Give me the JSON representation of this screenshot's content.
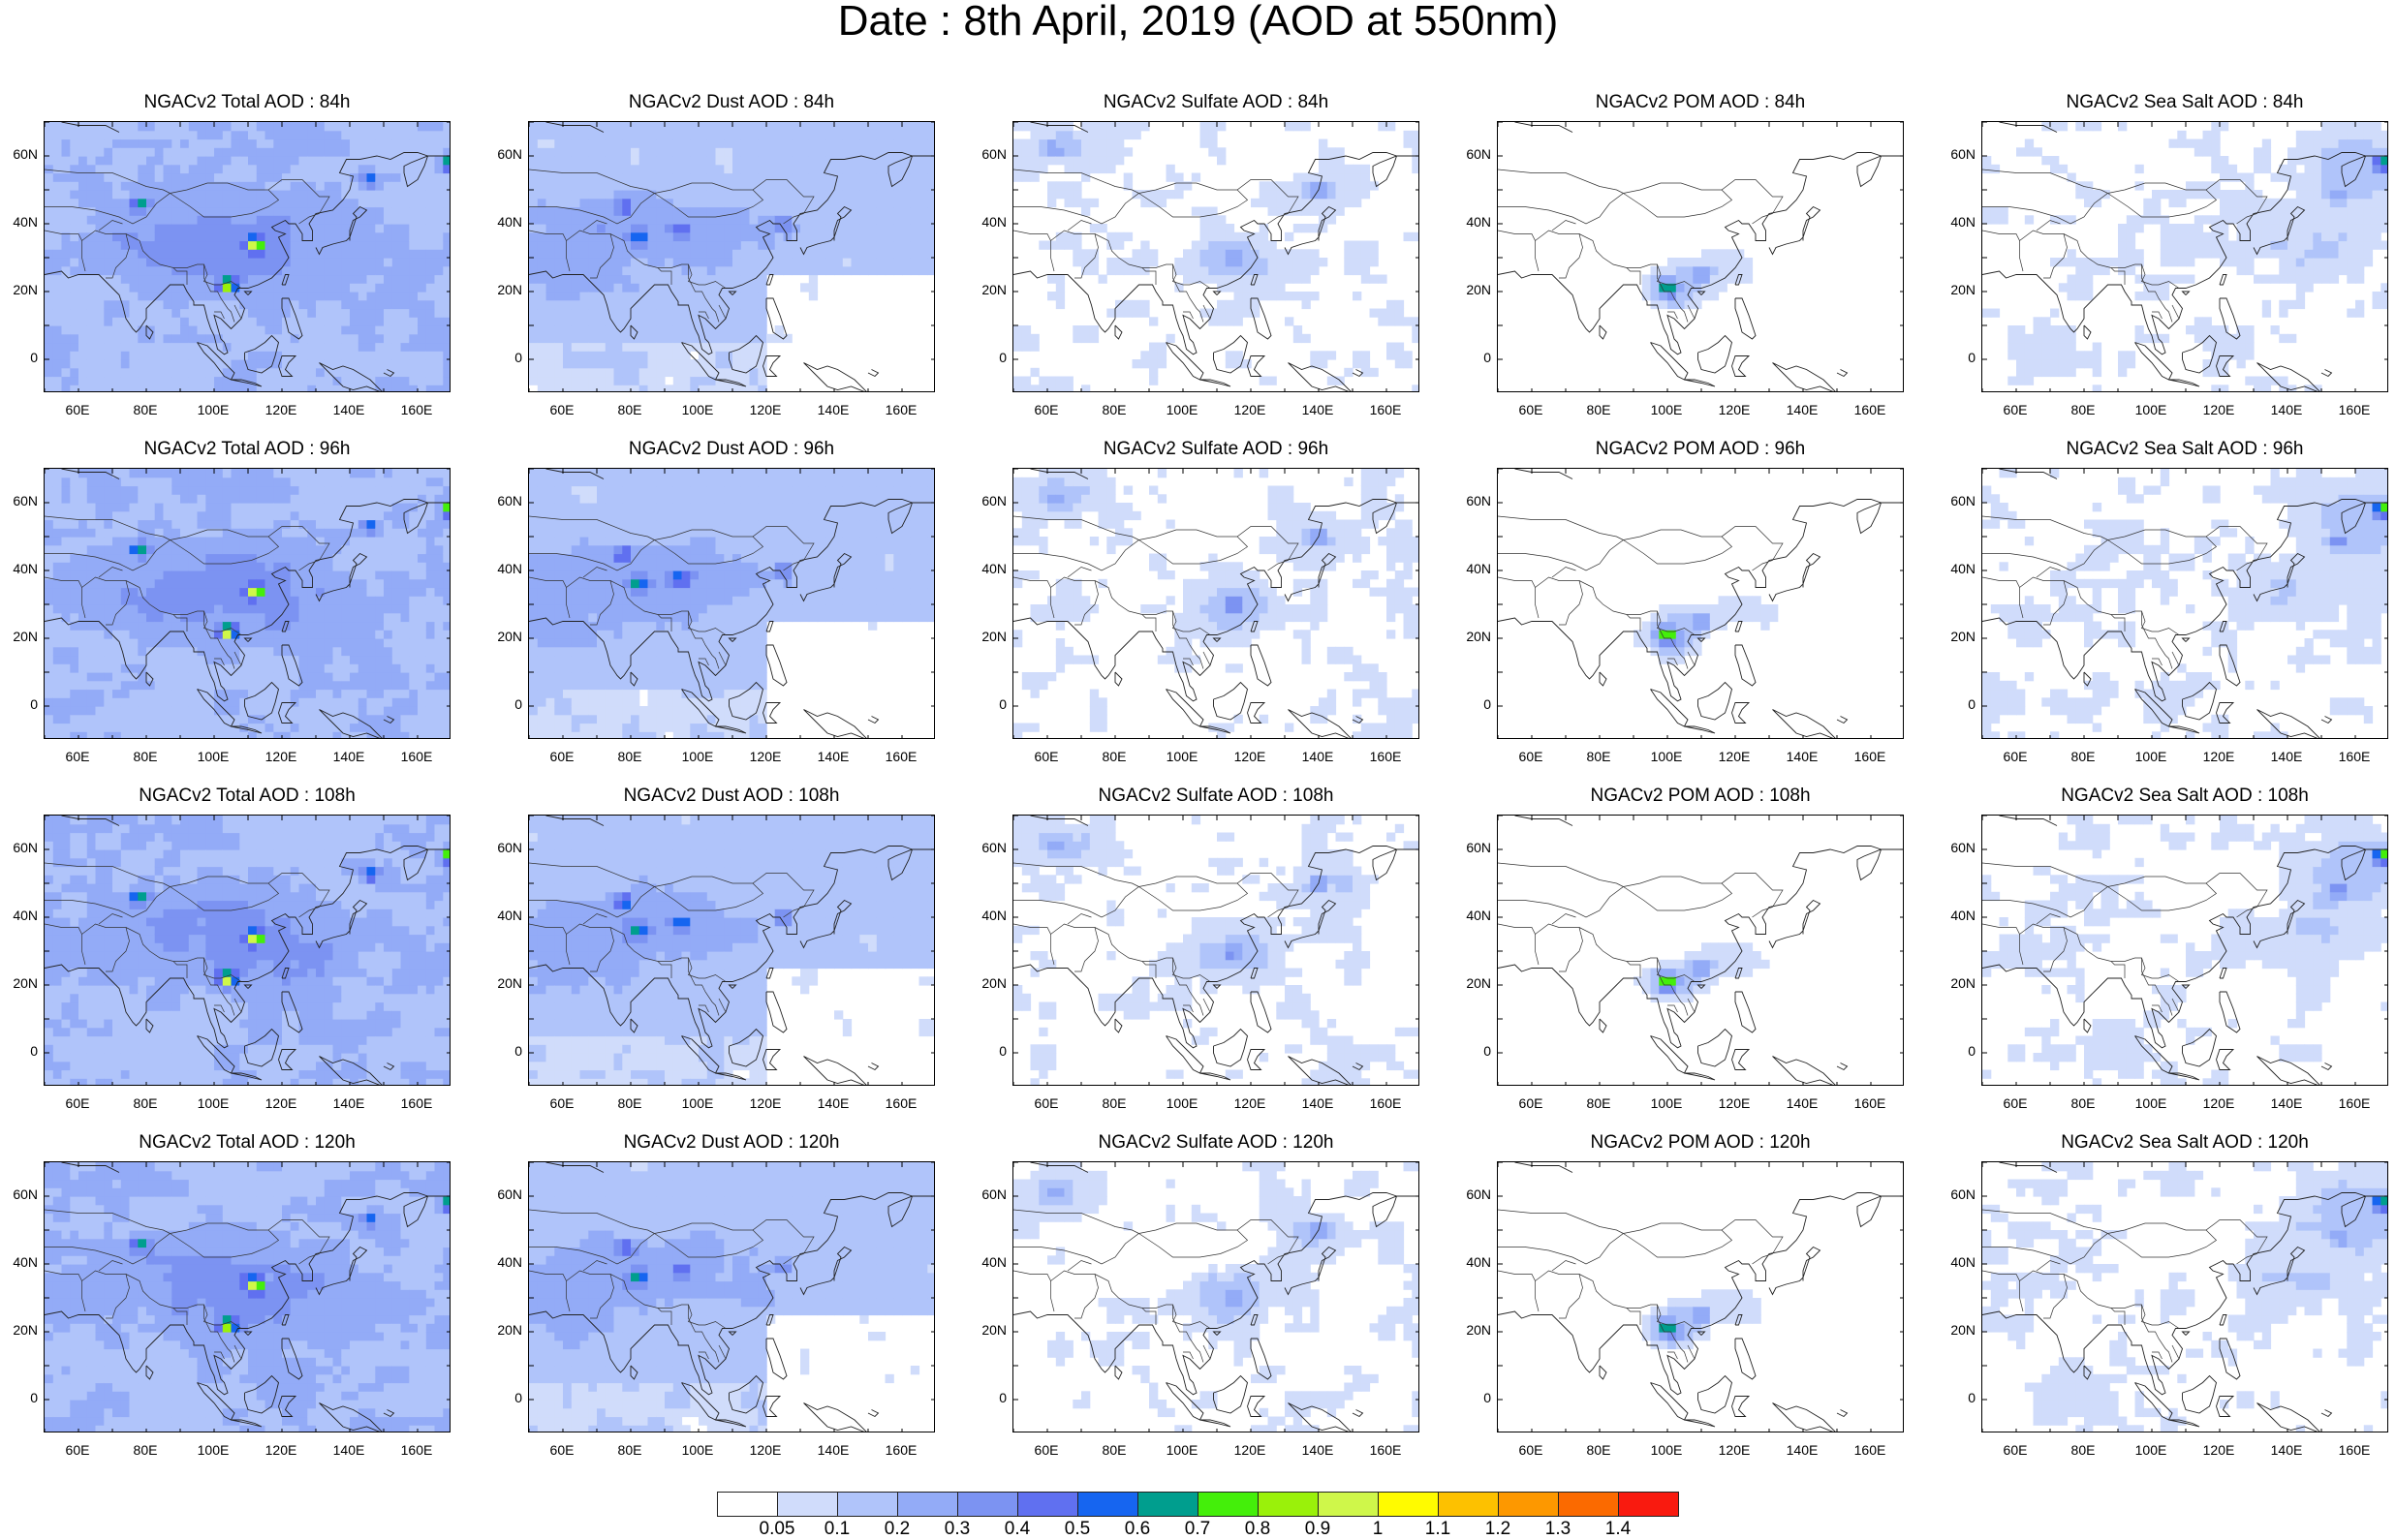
{
  "title": "Date : 8th April, 2019 (AOD at 550nm)",
  "columns": [
    {
      "species": "Total",
      "hotspots": [
        [
          78,
          46,
          0.5
        ],
        [
          112,
          34,
          0.7
        ],
        [
          104,
          22,
          0.8
        ],
        [
          170,
          58,
          0.8
        ],
        [
          146,
          53,
          0.45
        ]
      ]
    },
    {
      "species": "Dust",
      "hotspots": [
        [
          78,
          45,
          0.42
        ],
        [
          82,
          36,
          0.4
        ],
        [
          95,
          38,
          0.35
        ],
        [
          125,
          40,
          0.35
        ]
      ]
    },
    {
      "species": "Sulfate",
      "hotspots": [
        [
          115,
          30,
          0.3
        ],
        [
          140,
          50,
          0.25
        ],
        [
          62,
          62,
          0.2
        ]
      ]
    },
    {
      "species": "POM",
      "hotspots": [
        [
          100,
          21,
          0.7
        ],
        [
          110,
          25,
          0.35
        ]
      ]
    },
    {
      "species": "Sea Salt",
      "hotspots": [
        [
          168,
          58,
          0.8
        ],
        [
          155,
          48,
          0.3
        ]
      ]
    }
  ],
  "rows": [
    {
      "titles": [
        "NGACv2 Total AOD : 84h",
        "NGACv2 Dust AOD : 84h",
        "NGACv2 Sulfate AOD : 84h",
        "NGACv2 POM AOD : 84h",
        "NGACv2 Sea Salt AOD : 84h"
      ]
    },
    {
      "titles": [
        "NGACv2 Total AOD : 96h",
        "NGACv2 Dust AOD : 96h",
        "NGACv2 Sulfate AOD : 96h",
        "NGACv2 POM AOD : 96h",
        "NGACv2 Sea Salt AOD : 96h"
      ]
    },
    {
      "titles": [
        "NGACv2 Total AOD : 108h",
        "NGACv2 Dust AOD : 108h",
        "NGACv2 Sulfate AOD : 108h",
        "NGACv2 POM AOD : 108h",
        "NGACv2 Sea Salt AOD : 108h"
      ]
    },
    {
      "titles": [
        "NGACv2 Total AOD : 120h",
        "NGACv2 Dust AOD : 120h",
        "NGACv2 Sulfate AOD : 120h",
        "NGACv2 POM AOD : 120h",
        "NGACv2 Sea Salt  AOD : 120h"
      ]
    }
  ],
  "map_extent": {
    "lon_min": 50,
    "lon_max": 170,
    "lat_min": -10,
    "lat_max": 70
  },
  "lon_ticks": [
    {
      "v": 60,
      "label": "60E"
    },
    {
      "v": 80,
      "label": "80E"
    },
    {
      "v": 100,
      "label": "100E"
    },
    {
      "v": 120,
      "label": "120E"
    },
    {
      "v": 140,
      "label": "140E"
    },
    {
      "v": 160,
      "label": "160E"
    }
  ],
  "lat_ticks": [
    {
      "v": 60,
      "label": "60N"
    },
    {
      "v": 40,
      "label": "40N"
    },
    {
      "v": 20,
      "label": "20N"
    },
    {
      "v": 0,
      "label": "0"
    }
  ],
  "colorbar": {
    "colors": [
      "#ffffff",
      "#d0dcfb",
      "#b0c4fa",
      "#93abf7",
      "#7c93f2",
      "#6070f0",
      "#1665f0",
      "#009e8e",
      "#44ef0a",
      "#9af10a",
      "#cff74a",
      "#fffb00",
      "#fdc100",
      "#fd9800",
      "#fb6a00",
      "#f91a0f"
    ],
    "labels": [
      "0.05",
      "0.1",
      "0.2",
      "0.3",
      "0.4",
      "0.5",
      "0.6",
      "0.7",
      "0.8",
      "0.9",
      "1",
      "1.1",
      "1.2",
      "1.3",
      "1.4"
    ]
  }
}
